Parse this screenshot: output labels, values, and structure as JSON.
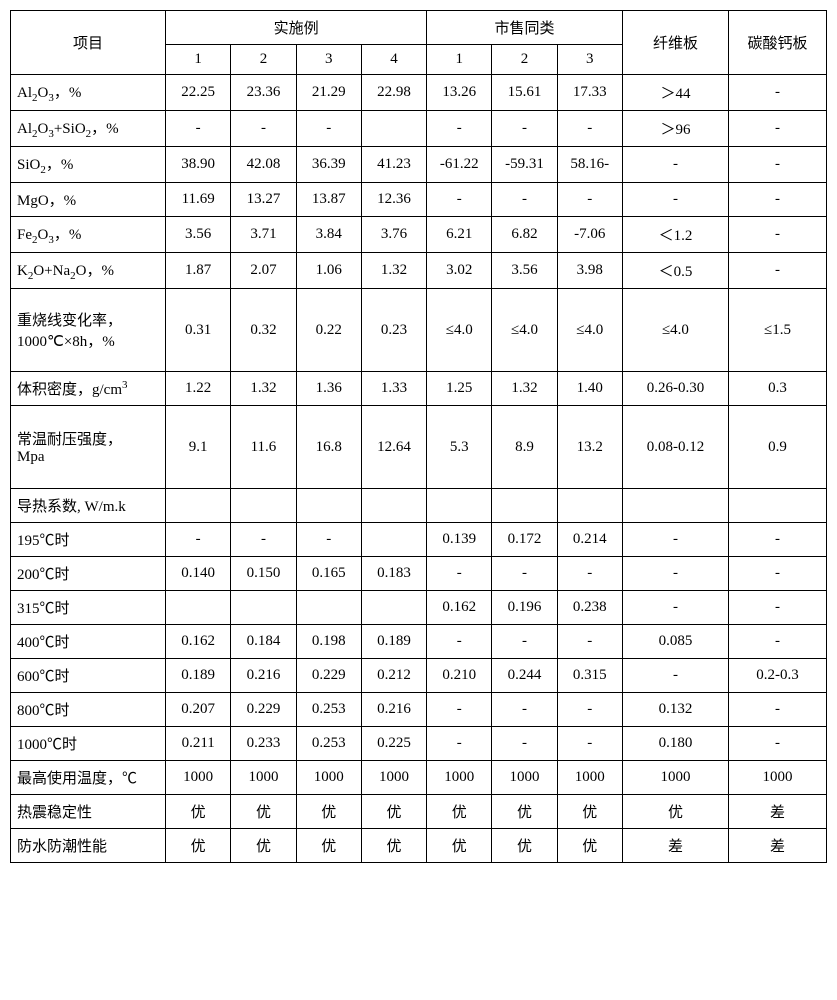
{
  "header": {
    "project": "项目",
    "group1": "实施例",
    "group2": "市售同类",
    "fiber": "纤维板",
    "calcium": "碳酸钙板",
    "sub": [
      "1",
      "2",
      "3",
      "4",
      "1",
      "2",
      "3"
    ]
  },
  "rows": [
    {
      "label": "Al<sub>2</sub>O<sub>3</sub>，%",
      "cells": [
        "22.25",
        "23.36",
        "21.29",
        "22.98",
        "13.26",
        "15.61",
        "17.33",
        "＞44",
        "-"
      ]
    },
    {
      "label": "Al<sub>2</sub>O<sub>3</sub>+SiO<sub>2</sub>，%",
      "cells": [
        "-",
        "-",
        "-",
        "",
        "-",
        "-",
        "-",
        "＞96",
        "-"
      ]
    },
    {
      "label": "SiO<sub>2</sub>，%",
      "cells": [
        "38.90",
        "42.08",
        "36.39",
        "41.23",
        "-61.22",
        "-59.31",
        "58.16-",
        "-",
        "-"
      ]
    },
    {
      "label": "MgO，%",
      "cells": [
        "11.69",
        "13.27",
        "13.87",
        "12.36",
        "-",
        "-",
        "-",
        "-",
        "-"
      ]
    },
    {
      "label": "Fe<sub>2</sub>O<sub>3</sub>，%",
      "cells": [
        "3.56",
        "3.71",
        "3.84",
        "3.76",
        "6.21",
        "6.82",
        "-7.06",
        "＜1.2",
        "-"
      ]
    },
    {
      "label": "K<sub>2</sub>O+Na<sub>2</sub>O，%",
      "cells": [
        "1.87",
        "2.07",
        "1.06",
        "1.32",
        "3.02",
        "3.56",
        "3.98",
        "＜0.5",
        "-"
      ]
    },
    {
      "label": "重烧线变化率，<br>1000℃×8h，%",
      "cells": [
        "0.31",
        "0.32",
        "0.22",
        "0.23",
        "≤4.0",
        "≤4.0",
        "≤4.0",
        "≤4.0",
        "≤1.5"
      ],
      "tall": true
    },
    {
      "label": "体积密度，g/cm<sup>3</sup>",
      "cells": [
        "1.22",
        "1.32",
        "1.36",
        "1.33",
        "1.25",
        "1.32",
        "1.40",
        "0.26-0.30",
        "0.3"
      ]
    },
    {
      "label": "常温耐压强度，<br>Mpa",
      "cells": [
        "9.1",
        "11.6",
        "16.8",
        "12.64",
        "5.3",
        "8.9",
        "13.2",
        "0.08-0.12",
        "0.9"
      ],
      "tall": true
    },
    {
      "label": "导热系数, W/m.k",
      "cells": [
        "",
        "",
        "",
        "",
        "",
        "",
        "",
        "",
        ""
      ]
    },
    {
      "label": "195℃时",
      "cells": [
        "-",
        "-",
        "-",
        "",
        "0.139",
        "0.172",
        "0.214",
        "-",
        "-"
      ]
    },
    {
      "label": "200℃时",
      "cells": [
        "0.140",
        "0.150",
        "0.165",
        "0.183",
        "-",
        "-",
        "-",
        "-",
        "-"
      ]
    },
    {
      "label": "315℃时",
      "cells": [
        "",
        "",
        "",
        "",
        "0.162",
        "0.196",
        "0.238",
        "-",
        "-"
      ]
    },
    {
      "label": "400℃时",
      "cells": [
        "0.162",
        "0.184",
        "0.198",
        "0.189",
        "-",
        "-",
        "-",
        "0.085",
        "-"
      ]
    },
    {
      "label": "600℃时",
      "cells": [
        "0.189",
        "0.216",
        "0.229",
        "0.212",
        "0.210",
        "0.244",
        "0.315",
        "-",
        "0.2-0.3"
      ]
    },
    {
      "label": "800℃时",
      "cells": [
        "0.207",
        "0.229",
        "0.253",
        "0.216",
        "-",
        "-",
        "-",
        "0.132",
        "-"
      ]
    },
    {
      "label": "1000℃时",
      "cells": [
        "0.211",
        "0.233",
        "0.253",
        "0.225",
        "-",
        "-",
        "-",
        "0.180",
        "-"
      ]
    },
    {
      "label": "最高使用温度，℃",
      "cells": [
        "1000",
        "1000",
        "1000",
        "1000",
        "1000",
        "1000",
        "1000",
        "1000",
        "1000"
      ]
    },
    {
      "label": "热震稳定性",
      "cells": [
        "优",
        "优",
        "优",
        "优",
        "优",
        "优",
        "优",
        "优",
        "差"
      ]
    },
    {
      "label": "防水防潮性能",
      "cells": [
        "优",
        "优",
        "优",
        "优",
        "优",
        "优",
        "优",
        "差",
        "差"
      ]
    }
  ],
  "colwidths": {
    "label": "19%",
    "narrow": "8%",
    "fiber": "12%",
    "calcium": "9%"
  }
}
